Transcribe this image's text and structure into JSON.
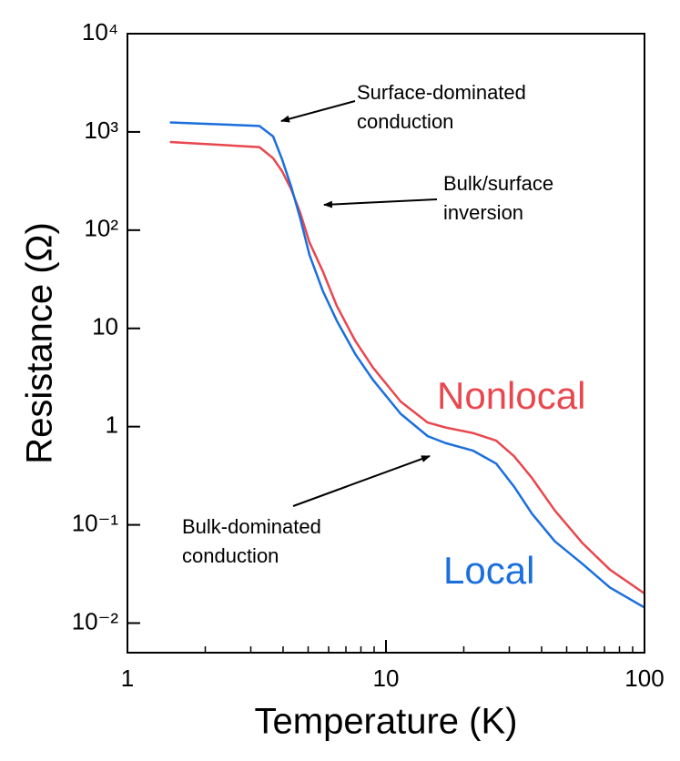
{
  "chart_data": {
    "type": "line",
    "xlabel": "Temperature (K)",
    "ylabel": "Resistance (Ω)",
    "xscale": "log",
    "yscale": "log",
    "xlim": [
      1,
      100
    ],
    "ylim": [
      0.005,
      10000
    ],
    "xticks": [
      1,
      10,
      100
    ],
    "xminorticks": [
      2,
      3,
      4,
      5,
      6,
      7,
      8,
      9,
      20,
      30,
      40,
      50,
      60,
      70,
      80,
      90
    ],
    "yticks": [
      {
        "value": 0.01,
        "label": "10⁻²"
      },
      {
        "value": 0.1,
        "label": "10⁻¹"
      },
      1,
      10,
      {
        "value": 100,
        "label": "10²"
      },
      {
        "value": 1000,
        "label": "10³"
      },
      {
        "value": 10000,
        "label": "10⁴"
      }
    ],
    "x": [
      1.46,
      3.24,
      3.66,
      3.96,
      4.3,
      4.66,
      5.06,
      5.7,
      6.45,
      7.6,
      8.9,
      11.4,
      14.5,
      17,
      21.7,
      26.7,
      31.3,
      36.7,
      45,
      57.6,
      73.5,
      100
    ],
    "series": [
      {
        "name": "Nonlocal",
        "color": "#e8474e",
        "values": [
          790,
          700,
          540,
          400,
          260,
          150,
          75,
          38,
          17,
          7.5,
          4.0,
          1.8,
          1.1,
          0.98,
          0.86,
          0.72,
          0.5,
          0.3,
          0.14,
          0.065,
          0.035,
          0.02
        ]
      },
      {
        "name": "Local",
        "color": "#1a6fdc",
        "values": [
          1250,
          1150,
          900,
          530,
          277,
          132,
          56,
          24,
          12,
          5.5,
          3.0,
          1.35,
          0.8,
          0.68,
          0.57,
          0.42,
          0.245,
          0.13,
          0.068,
          0.04,
          0.023,
          0.0144
        ]
      }
    ],
    "annotations": [
      {
        "lines": [
          "Surface-dominated",
          "conduction"
        ]
      },
      {
        "lines": [
          "Bulk/surface",
          "inversion"
        ]
      },
      {
        "lines": [
          "Bulk-dominated",
          "conduction"
        ]
      }
    ]
  }
}
